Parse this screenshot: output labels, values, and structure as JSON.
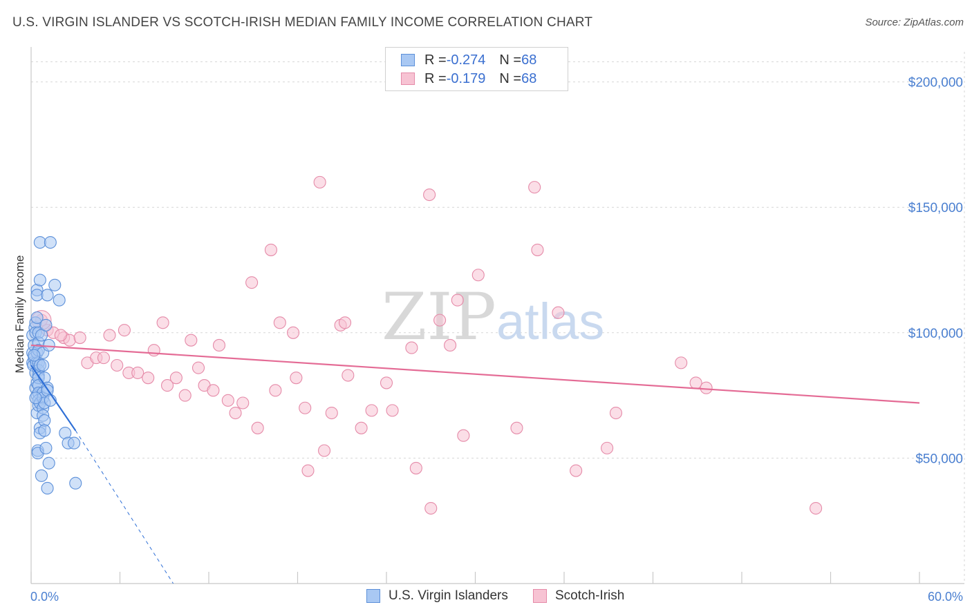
{
  "title": "U.S. VIRGIN ISLANDER VS SCOTCH-IRISH MEDIAN FAMILY INCOME CORRELATION CHART",
  "source": "Source: ZipAtlas.com",
  "watermark": {
    "zip": "ZIP",
    "atlas": "atlas"
  },
  "legend": {
    "rows": [
      {
        "r_label": "R = ",
        "r_value": "-0.274",
        "n_label": "N = ",
        "n_value": "68"
      },
      {
        "r_label": "R = ",
        "r_value": "-0.179",
        "n_label": "N = ",
        "n_value": "68"
      }
    ]
  },
  "bottom_legend": [
    "U.S. Virgin Islanders",
    "Scotch-Irish"
  ],
  "colors": {
    "blue_fill": "#a9c8f3",
    "blue_stroke": "#5b8fd9",
    "blue_line": "#2e6fd6",
    "pink_fill": "#f7c3d3",
    "pink_stroke": "#e58aa8",
    "pink_line": "#e46b95",
    "grid": "#d6d6d6",
    "axis_text": "#4a7fd0"
  },
  "chart_data": {
    "type": "scatter",
    "title": "U.S. VIRGIN ISLANDER VS SCOTCH-IRISH MEDIAN FAMILY INCOME CORRELATION CHART",
    "xlabel": "",
    "ylabel": "Median Family Income",
    "xlim": [
      0,
      60
    ],
    "ylim": [
      0,
      212000
    ],
    "x_tick_labels": [
      "0.0%",
      "60.0%"
    ],
    "y_ticks": [
      50000,
      100000,
      150000,
      200000
    ],
    "y_tick_labels": [
      "$50,000",
      "$100,000",
      "$150,000",
      "$200,000"
    ],
    "grid": "horizontal dashed",
    "legend": "top-center",
    "series": [
      {
        "name": "U.S. Virgin Islanders",
        "points": [
          [
            0.1,
            92000
          ],
          [
            0.1,
            88000
          ],
          [
            0.1,
            99000
          ],
          [
            0.15,
            87000
          ],
          [
            0.2,
            90000
          ],
          [
            0.2,
            95000
          ],
          [
            0.25,
            102000
          ],
          [
            0.3,
            104000
          ],
          [
            0.3,
            100000
          ],
          [
            0.3,
            84000
          ],
          [
            0.3,
            78000
          ],
          [
            0.35,
            88000
          ],
          [
            0.4,
            106000
          ],
          [
            0.4,
            117000
          ],
          [
            0.4,
            115000
          ],
          [
            0.4,
            92000
          ],
          [
            0.4,
            80000
          ],
          [
            0.4,
            75000
          ],
          [
            0.4,
            68000
          ],
          [
            0.45,
            53000
          ],
          [
            0.45,
            52000
          ],
          [
            0.5,
            100000
          ],
          [
            0.5,
            96000
          ],
          [
            0.5,
            93000
          ],
          [
            0.5,
            88000
          ],
          [
            0.5,
            85000
          ],
          [
            0.5,
            83000
          ],
          [
            0.5,
            82000
          ],
          [
            0.5,
            79000
          ],
          [
            0.5,
            76000
          ],
          [
            0.5,
            73000
          ],
          [
            0.5,
            71000
          ],
          [
            0.6,
            136000
          ],
          [
            0.6,
            121000
          ],
          [
            0.6,
            87000
          ],
          [
            0.6,
            72000
          ],
          [
            0.6,
            62000
          ],
          [
            0.6,
            60000
          ],
          [
            0.7,
            43000
          ],
          [
            0.7,
            99000
          ],
          [
            0.8,
            92000
          ],
          [
            0.8,
            87000
          ],
          [
            0.8,
            76000
          ],
          [
            0.8,
            74000
          ],
          [
            0.8,
            70000
          ],
          [
            0.8,
            67000
          ],
          [
            0.9,
            82000
          ],
          [
            0.9,
            72000
          ],
          [
            0.9,
            65000
          ],
          [
            0.9,
            61000
          ],
          [
            1.0,
            103000
          ],
          [
            1.0,
            54000
          ],
          [
            1.1,
            38000
          ],
          [
            1.1,
            115000
          ],
          [
            1.1,
            78000
          ],
          [
            1.1,
            77000
          ],
          [
            1.2,
            95000
          ],
          [
            1.2,
            48000
          ],
          [
            1.3,
            136000
          ],
          [
            1.3,
            73000
          ],
          [
            1.6,
            119000
          ],
          [
            1.9,
            113000
          ],
          [
            2.3,
            60000
          ],
          [
            2.5,
            56000
          ],
          [
            2.9,
            56000
          ],
          [
            3.0,
            40000
          ],
          [
            0.2,
            91000
          ],
          [
            0.3,
            74000
          ]
        ],
        "trend": {
          "x": [
            0,
            3.0
          ],
          "y": [
            87000,
            61000
          ],
          "dashed_ext": {
            "x": [
              3.0,
              9.6
            ],
            "y": [
              61000,
              0
            ]
          }
        }
      },
      {
        "name": "Scotch-Irish",
        "points": [
          [
            0.7,
            105000
          ],
          [
            1.1,
            101000
          ],
          [
            1.5,
            100000
          ],
          [
            2.2,
            98000
          ],
          [
            2.6,
            97000
          ],
          [
            3.3,
            98000
          ],
          [
            3.8,
            88000
          ],
          [
            4.4,
            90000
          ],
          [
            4.9,
            90000
          ],
          [
            5.3,
            99000
          ],
          [
            5.8,
            87000
          ],
          [
            6.3,
            101000
          ],
          [
            6.6,
            84000
          ],
          [
            7.2,
            84000
          ],
          [
            7.9,
            82000
          ],
          [
            8.3,
            93000
          ],
          [
            8.9,
            104000
          ],
          [
            9.2,
            79000
          ],
          [
            9.8,
            82000
          ],
          [
            10.4,
            75000
          ],
          [
            10.8,
            97000
          ],
          [
            11.3,
            86000
          ],
          [
            11.7,
            79000
          ],
          [
            12.3,
            77000
          ],
          [
            12.7,
            95000
          ],
          [
            13.3,
            73000
          ],
          [
            13.8,
            68000
          ],
          [
            14.3,
            72000
          ],
          [
            14.9,
            120000
          ],
          [
            15.3,
            62000
          ],
          [
            16.2,
            133000
          ],
          [
            16.5,
            77000
          ],
          [
            16.8,
            104000
          ],
          [
            17.7,
            100000
          ],
          [
            17.9,
            82000
          ],
          [
            18.5,
            70000
          ],
          [
            18.7,
            45000
          ],
          [
            19.5,
            160000
          ],
          [
            19.8,
            53000
          ],
          [
            20.3,
            68000
          ],
          [
            20.9,
            103000
          ],
          [
            21.2,
            104000
          ],
          [
            21.4,
            83000
          ],
          [
            22.3,
            62000
          ],
          [
            23.0,
            69000
          ],
          [
            24.0,
            80000
          ],
          [
            24.4,
            69000
          ],
          [
            25.7,
            94000
          ],
          [
            26.0,
            46000
          ],
          [
            26.9,
            155000
          ],
          [
            27.0,
            30000
          ],
          [
            27.6,
            105000
          ],
          [
            28.3,
            95000
          ],
          [
            28.8,
            113000
          ],
          [
            29.2,
            59000
          ],
          [
            30.2,
            123000
          ],
          [
            32.8,
            62000
          ],
          [
            34.0,
            158000
          ],
          [
            34.2,
            133000
          ],
          [
            35.6,
            108000
          ],
          [
            36.8,
            45000
          ],
          [
            38.9,
            54000
          ],
          [
            39.5,
            68000
          ],
          [
            43.9,
            88000
          ],
          [
            44.9,
            80000
          ],
          [
            45.6,
            78000
          ],
          [
            53.0,
            30000
          ],
          [
            2.0,
            99000
          ]
        ],
        "trend": {
          "x": [
            0,
            60
          ],
          "y": [
            95000,
            72000
          ]
        }
      }
    ]
  }
}
